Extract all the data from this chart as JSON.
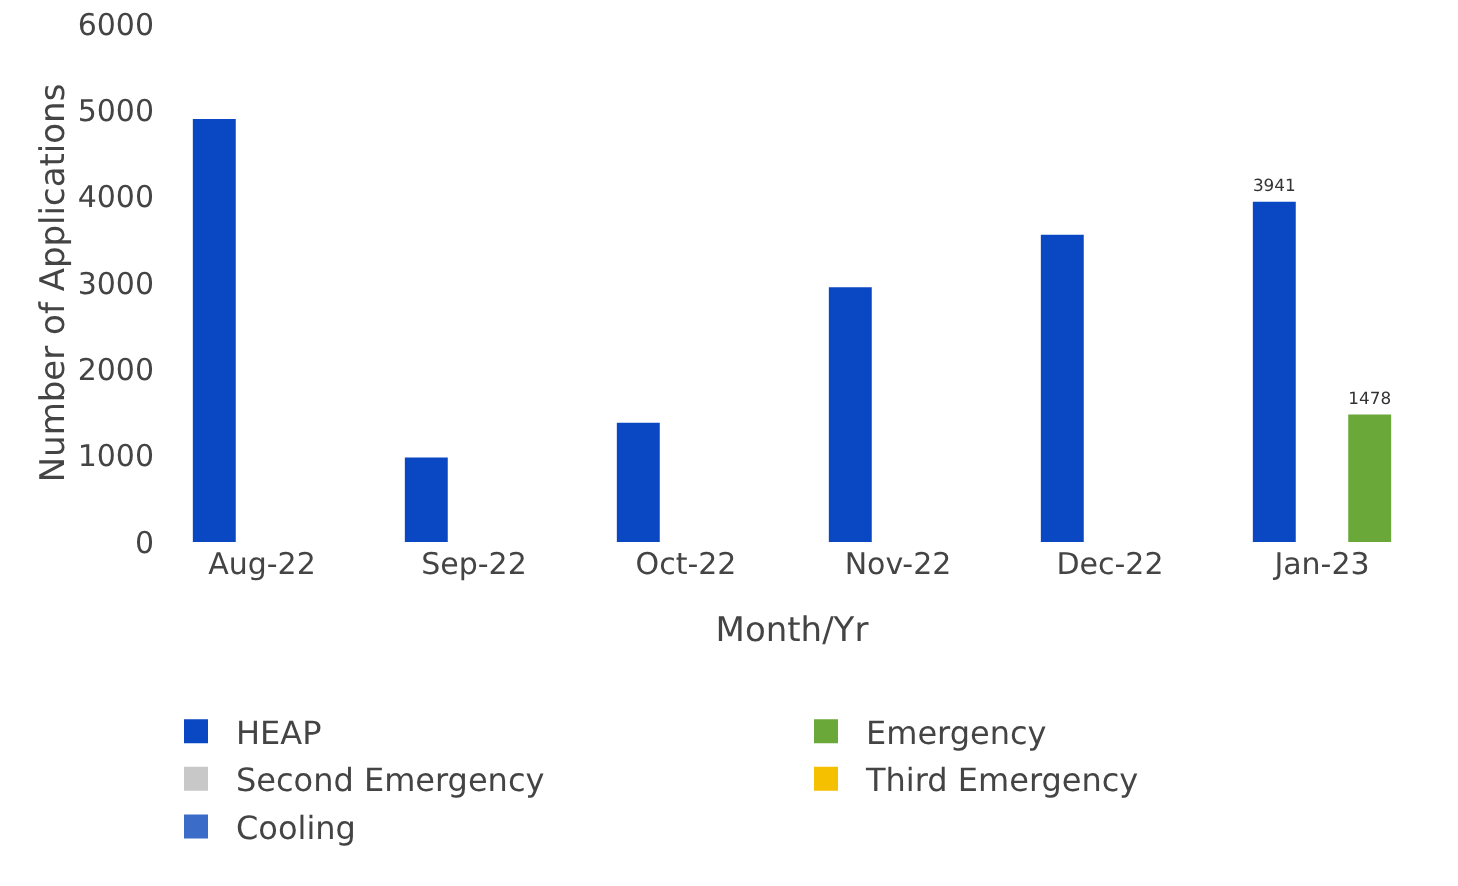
{
  "chart_data": {
    "type": "bar",
    "xlabel": "Month/Yr",
    "ylabel": "Number of Applications",
    "categories": [
      "Aug-22",
      "Sep-22",
      "Oct-22",
      "Nov-22",
      "Dec-22",
      "Jan-23"
    ],
    "series": [
      {
        "name": "HEAP",
        "color": "#0a47c2",
        "values": [
          4900,
          980,
          1380,
          2950,
          3560,
          3941
        ],
        "value_labels": [
          null,
          null,
          null,
          null,
          null,
          "3941"
        ]
      },
      {
        "name": "Emergency",
        "color": "#6aa83a",
        "values": [
          null,
          null,
          null,
          null,
          null,
          1478
        ],
        "value_labels": [
          null,
          null,
          null,
          null,
          null,
          "1478"
        ]
      },
      {
        "name": "Second Emergency",
        "color": "#c8c8c8",
        "values": [
          null,
          null,
          null,
          null,
          null,
          null
        ]
      },
      {
        "name": "Third Emergency",
        "color": "#f5c000",
        "values": [
          null,
          null,
          null,
          null,
          null,
          null
        ]
      },
      {
        "name": "Cooling",
        "color": "#3a6cc8",
        "values": [
          null,
          null,
          null,
          null,
          null,
          null
        ]
      }
    ],
    "ylim": [
      0,
      6000
    ],
    "yticks": [
      0,
      1000,
      2000,
      3000,
      4000,
      5000,
      6000
    ],
    "grid": false,
    "legend": "bottom"
  }
}
